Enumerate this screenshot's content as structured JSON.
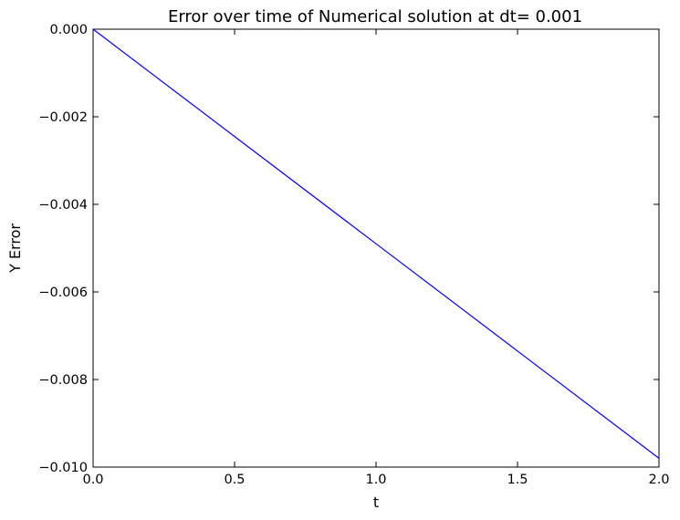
{
  "chart_data": {
    "type": "line",
    "title": "Error over time of Numerical solution at dt= 0.001",
    "xlabel": "t",
    "ylabel": "Y Error",
    "xlim": [
      0.0,
      2.0
    ],
    "ylim": [
      -0.01,
      0.0
    ],
    "x_ticks": [
      "0.0",
      "0.5",
      "1.0",
      "1.5",
      "2.0"
    ],
    "y_ticks": [
      "0.000",
      "−0.002",
      "−0.004",
      "−0.006",
      "−0.008",
      "−0.010"
    ],
    "x_tick_values": [
      0.0,
      0.5,
      1.0,
      1.5,
      2.0
    ],
    "y_tick_values": [
      0.0,
      -0.002,
      -0.004,
      -0.006,
      -0.008,
      -0.01
    ],
    "grid": false,
    "series": [
      {
        "color": "#0000ff",
        "x": [
          0.0,
          0.5,
          1.0,
          1.5,
          2.0
        ],
        "y": [
          0.0,
          -0.00245,
          -0.0049,
          -0.00735,
          -0.0098
        ]
      }
    ]
  }
}
